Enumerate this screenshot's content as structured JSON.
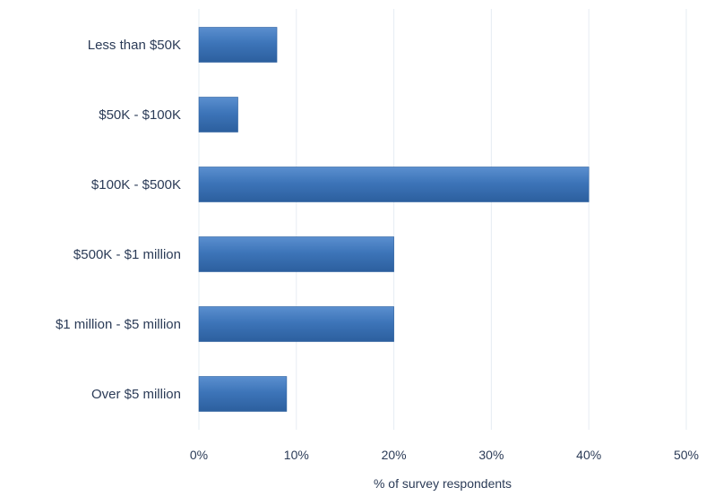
{
  "chart_data": {
    "type": "bar",
    "orientation": "horizontal",
    "categories": [
      "Less than $50K",
      "$50K - $100K",
      "$100K - $500K",
      "$500K - $1 million",
      "$1 million - $5 million",
      "Over $5 million"
    ],
    "values": [
      8,
      4,
      40,
      20,
      20,
      9
    ],
    "xlabel": "% of survey respondents",
    "ylabel": "",
    "xlim": [
      0,
      50
    ],
    "x_ticks": [
      "0%",
      "10%",
      "20%",
      "30%",
      "40%",
      "50%"
    ],
    "x_tick_values": [
      0,
      10,
      20,
      30,
      40,
      50
    ],
    "grid": "vertical",
    "legend": "none",
    "bar_color": "#3d75b9",
    "bar_color_dark": "#2c5f9e",
    "bar_color_light": "#5b8fcf"
  }
}
